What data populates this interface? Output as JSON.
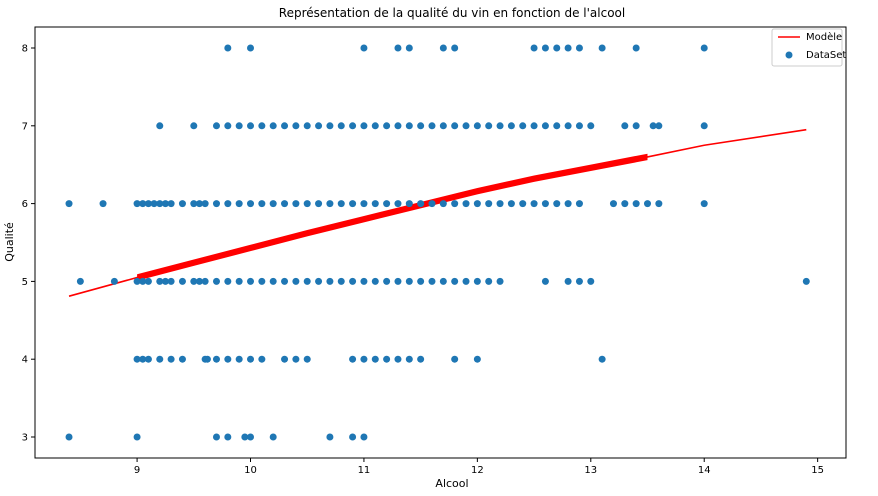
{
  "chart_data": {
    "type": "scatter",
    "title": "Représentation de la qualité du vin en fonction de l'alcool",
    "xlabel": "Alcool",
    "ylabel": "Qualité",
    "xlim": [
      8.1,
      15.25
    ],
    "ylim": [
      2.73,
      8.27
    ],
    "xticks": [
      9,
      10,
      11,
      12,
      13,
      14,
      15
    ],
    "yticks": [
      3,
      4,
      5,
      6,
      7,
      8
    ],
    "grid": false,
    "legend_position": "top-right",
    "colors": {
      "model": "#ff0000",
      "dataset": "#1f77b4"
    },
    "series": [
      {
        "name": "Modèle",
        "kind": "line",
        "color": "#ff0000",
        "points": [
          [
            8.4,
            4.81
          ],
          [
            9.0,
            5.05
          ],
          [
            9.5,
            5.24
          ],
          [
            10.0,
            5.43
          ],
          [
            10.5,
            5.62
          ],
          [
            11.0,
            5.8
          ],
          [
            11.5,
            5.98
          ],
          [
            12.0,
            6.16
          ],
          [
            12.5,
            6.32
          ],
          [
            13.0,
            6.46
          ],
          [
            13.5,
            6.6
          ],
          [
            14.0,
            6.75
          ],
          [
            14.9,
            6.95
          ]
        ]
      },
      {
        "name": "DataSet",
        "kind": "scatter",
        "color": "#1f77b4",
        "points": [
          [
            8.4,
            3
          ],
          [
            9.0,
            3
          ],
          [
            9.7,
            3
          ],
          [
            9.8,
            3
          ],
          [
            9.95,
            3
          ],
          [
            10.0,
            3
          ],
          [
            10.2,
            3
          ],
          [
            10.7,
            3
          ],
          [
            10.9,
            3
          ],
          [
            11.0,
            3
          ],
          [
            9.0,
            4
          ],
          [
            9.05,
            4
          ],
          [
            9.1,
            4
          ],
          [
            9.2,
            4
          ],
          [
            9.3,
            4
          ],
          [
            9.4,
            4
          ],
          [
            9.6,
            4
          ],
          [
            9.62,
            4
          ],
          [
            9.7,
            4
          ],
          [
            9.8,
            4
          ],
          [
            9.9,
            4
          ],
          [
            10.0,
            4
          ],
          [
            10.1,
            4
          ],
          [
            10.3,
            4
          ],
          [
            10.4,
            4
          ],
          [
            10.5,
            4
          ],
          [
            10.9,
            4
          ],
          [
            11.0,
            4
          ],
          [
            11.1,
            4
          ],
          [
            11.2,
            4
          ],
          [
            11.3,
            4
          ],
          [
            11.4,
            4
          ],
          [
            11.5,
            4
          ],
          [
            11.8,
            4
          ],
          [
            12.0,
            4
          ],
          [
            13.1,
            4
          ],
          [
            8.5,
            5
          ],
          [
            8.8,
            5
          ],
          [
            9.0,
            5
          ],
          [
            9.05,
            5
          ],
          [
            9.1,
            5
          ],
          [
            9.2,
            5
          ],
          [
            9.25,
            5
          ],
          [
            9.3,
            5
          ],
          [
            9.4,
            5
          ],
          [
            9.5,
            5
          ],
          [
            9.55,
            5
          ],
          [
            9.6,
            5
          ],
          [
            9.7,
            5
          ],
          [
            9.8,
            5
          ],
          [
            9.9,
            5
          ],
          [
            10.0,
            5
          ],
          [
            10.1,
            5
          ],
          [
            10.2,
            5
          ],
          [
            10.3,
            5
          ],
          [
            10.4,
            5
          ],
          [
            10.5,
            5
          ],
          [
            10.6,
            5
          ],
          [
            10.7,
            5
          ],
          [
            10.8,
            5
          ],
          [
            10.9,
            5
          ],
          [
            11.0,
            5
          ],
          [
            11.1,
            5
          ],
          [
            11.2,
            5
          ],
          [
            11.3,
            5
          ],
          [
            11.4,
            5
          ],
          [
            11.5,
            5
          ],
          [
            11.6,
            5
          ],
          [
            11.7,
            5
          ],
          [
            11.8,
            5
          ],
          [
            11.9,
            5
          ],
          [
            12.0,
            5
          ],
          [
            12.1,
            5
          ],
          [
            12.2,
            5
          ],
          [
            12.6,
            5
          ],
          [
            12.8,
            5
          ],
          [
            12.9,
            5
          ],
          [
            13.0,
            5
          ],
          [
            14.9,
            5
          ],
          [
            8.4,
            6
          ],
          [
            8.7,
            6
          ],
          [
            9.0,
            6
          ],
          [
            9.05,
            6
          ],
          [
            9.1,
            6
          ],
          [
            9.15,
            6
          ],
          [
            9.2,
            6
          ],
          [
            9.25,
            6
          ],
          [
            9.3,
            6
          ],
          [
            9.4,
            6
          ],
          [
            9.5,
            6
          ],
          [
            9.55,
            6
          ],
          [
            9.6,
            6
          ],
          [
            9.7,
            6
          ],
          [
            9.8,
            6
          ],
          [
            9.9,
            6
          ],
          [
            10.0,
            6
          ],
          [
            10.1,
            6
          ],
          [
            10.2,
            6
          ],
          [
            10.3,
            6
          ],
          [
            10.4,
            6
          ],
          [
            10.5,
            6
          ],
          [
            10.6,
            6
          ],
          [
            10.7,
            6
          ],
          [
            10.8,
            6
          ],
          [
            10.9,
            6
          ],
          [
            11.0,
            6
          ],
          [
            11.1,
            6
          ],
          [
            11.2,
            6
          ],
          [
            11.3,
            6
          ],
          [
            11.4,
            6
          ],
          [
            11.5,
            6
          ],
          [
            11.6,
            6
          ],
          [
            11.7,
            6
          ],
          [
            11.8,
            6
          ],
          [
            11.9,
            6
          ],
          [
            12.0,
            6
          ],
          [
            12.1,
            6
          ],
          [
            12.2,
            6
          ],
          [
            12.3,
            6
          ],
          [
            12.4,
            6
          ],
          [
            12.5,
            6
          ],
          [
            12.6,
            6
          ],
          [
            12.7,
            6
          ],
          [
            12.8,
            6
          ],
          [
            12.9,
            6
          ],
          [
            13.2,
            6
          ],
          [
            13.3,
            6
          ],
          [
            13.4,
            6
          ],
          [
            13.5,
            6
          ],
          [
            13.6,
            6
          ],
          [
            14.0,
            6
          ],
          [
            9.2,
            7
          ],
          [
            9.5,
            7
          ],
          [
            9.7,
            7
          ],
          [
            9.8,
            7
          ],
          [
            9.9,
            7
          ],
          [
            10.0,
            7
          ],
          [
            10.1,
            7
          ],
          [
            10.2,
            7
          ],
          [
            10.3,
            7
          ],
          [
            10.4,
            7
          ],
          [
            10.5,
            7
          ],
          [
            10.6,
            7
          ],
          [
            10.7,
            7
          ],
          [
            10.8,
            7
          ],
          [
            10.9,
            7
          ],
          [
            11.0,
            7
          ],
          [
            11.1,
            7
          ],
          [
            11.2,
            7
          ],
          [
            11.3,
            7
          ],
          [
            11.4,
            7
          ],
          [
            11.5,
            7
          ],
          [
            11.6,
            7
          ],
          [
            11.7,
            7
          ],
          [
            11.8,
            7
          ],
          [
            11.9,
            7
          ],
          [
            12.0,
            7
          ],
          [
            12.1,
            7
          ],
          [
            12.2,
            7
          ],
          [
            12.3,
            7
          ],
          [
            12.4,
            7
          ],
          [
            12.5,
            7
          ],
          [
            12.6,
            7
          ],
          [
            12.7,
            7
          ],
          [
            12.8,
            7
          ],
          [
            12.9,
            7
          ],
          [
            13.0,
            7
          ],
          [
            13.3,
            7
          ],
          [
            13.4,
            7
          ],
          [
            13.55,
            7
          ],
          [
            13.6,
            7
          ],
          [
            14.0,
            7
          ],
          [
            9.8,
            8
          ],
          [
            10.0,
            8
          ],
          [
            11.0,
            8
          ],
          [
            11.3,
            8
          ],
          [
            11.4,
            8
          ],
          [
            11.7,
            8
          ],
          [
            11.8,
            8
          ],
          [
            12.5,
            8
          ],
          [
            12.6,
            8
          ],
          [
            12.7,
            8
          ],
          [
            12.8,
            8
          ],
          [
            12.9,
            8
          ],
          [
            13.1,
            8
          ],
          [
            13.4,
            8
          ],
          [
            14.0,
            8
          ]
        ]
      }
    ]
  }
}
